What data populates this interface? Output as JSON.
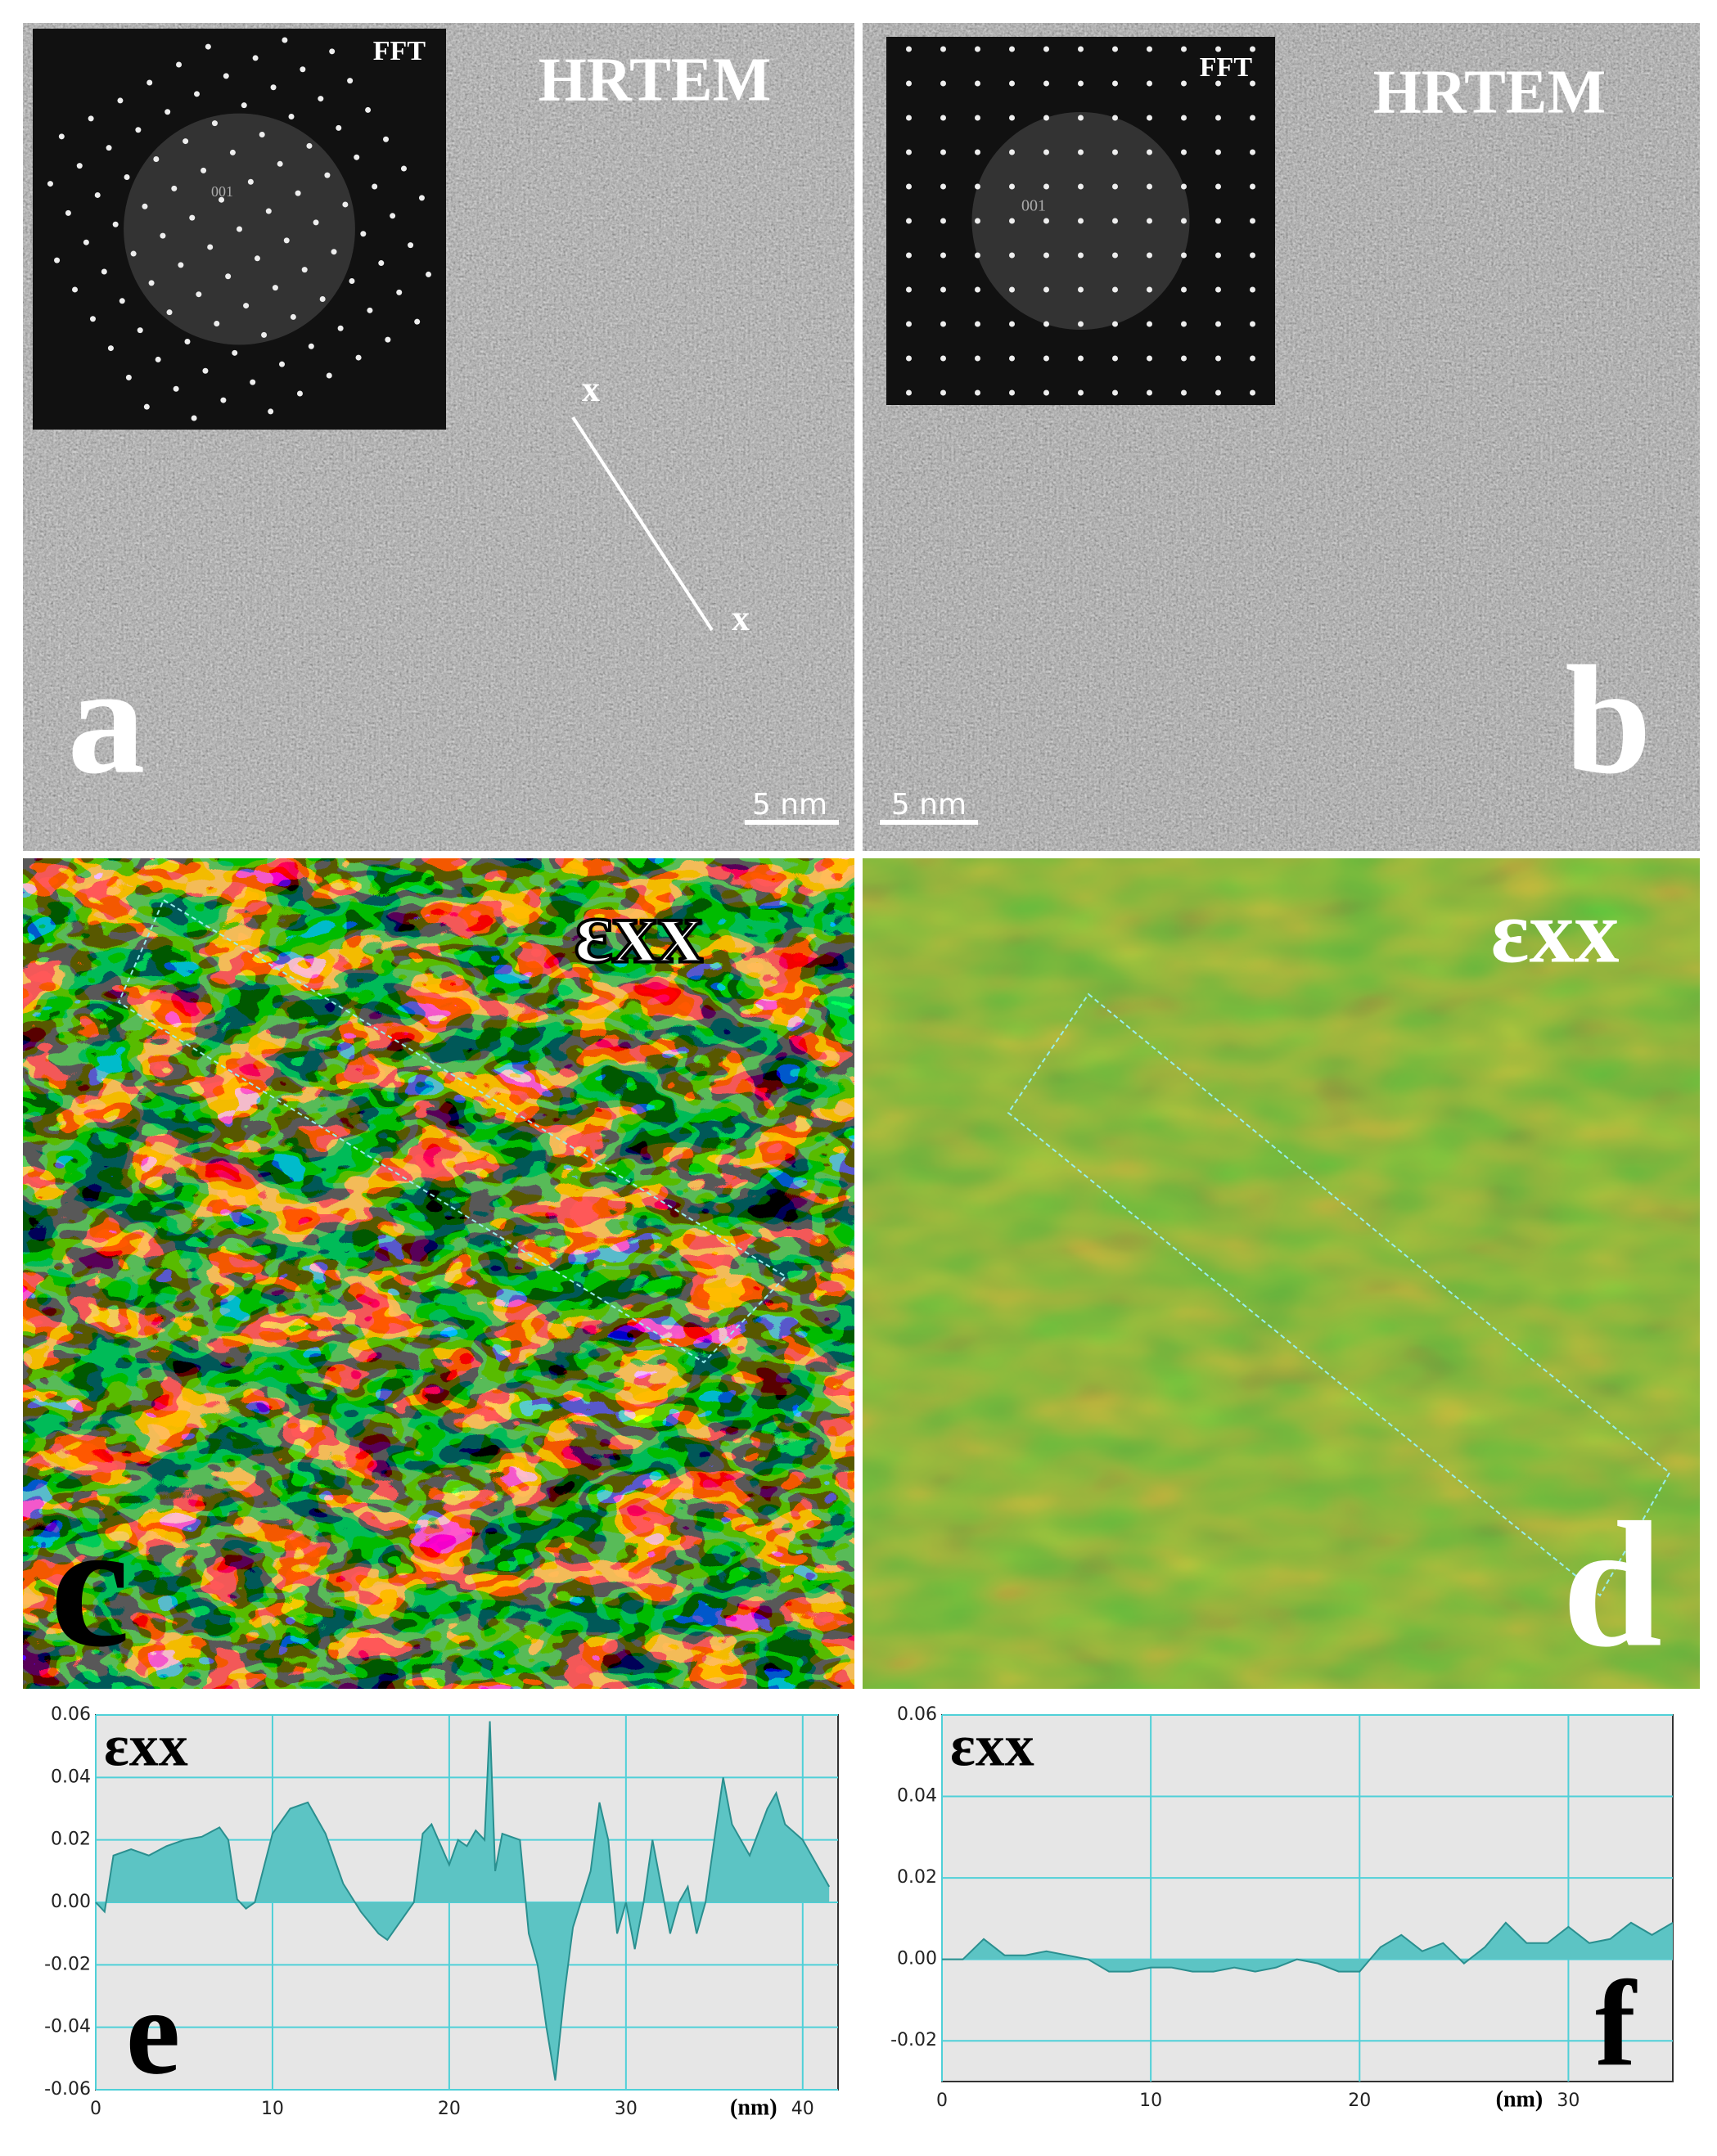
{
  "panels": [
    {
      "letter": "a",
      "title": "HRTEM",
      "inset": "FFT",
      "spot": "001",
      "line_start": "x",
      "line_end": "x",
      "scale_bar": "5 nm"
    },
    {
      "letter": "b",
      "title": "HRTEM",
      "inset": "FFT",
      "spot": "001",
      "scale_bar": "5 nm"
    },
    {
      "letter": "c",
      "title": "εxx"
    },
    {
      "letter": "d",
      "title": "εxx"
    }
  ],
  "chart_data": [
    {
      "type": "area",
      "label": "εxx",
      "panel_letter": "e",
      "x_label": "(nm)",
      "color": "#5cc4c4",
      "grid": true,
      "x": [
        0,
        0.5,
        1,
        2,
        3,
        4,
        5,
        6,
        7,
        7.5,
        8,
        8.5,
        9,
        10,
        11,
        12,
        13,
        14,
        15,
        16,
        16.5,
        17,
        18,
        18.5,
        19,
        20,
        20.5,
        21,
        21.5,
        22,
        22.3,
        22.6,
        23,
        24,
        24.5,
        25,
        25.5,
        26,
        26.5,
        27,
        28,
        28.5,
        29,
        29.5,
        30,
        30.5,
        31,
        31.5,
        32,
        32.5,
        33,
        33.5,
        34,
        34.5,
        35,
        35.5,
        36,
        37,
        38,
        38.5,
        39,
        40,
        41,
        41.5
      ],
      "values": [
        0,
        -0.003,
        0.015,
        0.017,
        0.015,
        0.018,
        0.02,
        0.021,
        0.024,
        0.02,
        0.001,
        -0.002,
        0,
        0.022,
        0.03,
        0.032,
        0.022,
        0.006,
        -0.003,
        -0.01,
        -0.012,
        -0.008,
        0,
        0.022,
        0.025,
        0.012,
        0.02,
        0.018,
        0.023,
        0.02,
        0.058,
        0.01,
        0.022,
        0.02,
        -0.01,
        -0.02,
        -0.04,
        -0.057,
        -0.03,
        -0.008,
        0.01,
        0.032,
        0.02,
        -0.01,
        0,
        -0.015,
        0,
        0.02,
        0.005,
        -0.01,
        0,
        0.005,
        -0.01,
        0,
        0.02,
        0.04,
        0.025,
        0.015,
        0.03,
        0.035,
        0.025,
        0.02,
        0.01,
        0.005
      ],
      "xlim": [
        0,
        42
      ],
      "ylim": [
        -0.06,
        0.06
      ],
      "xticks": [
        0,
        10,
        20,
        30,
        40
      ],
      "yticks": [
        0.06,
        0.04,
        0.02,
        {
          "value": 0,
          "label": "0.00"
        },
        -0.02,
        -0.04,
        -0.06
      ]
    },
    {
      "type": "area",
      "label": "εxx",
      "panel_letter": "f",
      "x_label": "(nm)",
      "color": "#5cc4c4",
      "grid": true,
      "x": [
        0,
        1,
        2,
        3,
        4,
        5,
        6,
        7,
        8,
        9,
        10,
        11,
        12,
        13,
        14,
        15,
        16,
        17,
        18,
        19,
        20,
        21,
        22,
        23,
        24,
        25,
        26,
        27,
        28,
        29,
        30,
        31,
        32,
        33,
        34,
        35
      ],
      "values": [
        0,
        0,
        0.005,
        0.001,
        0.001,
        0.002,
        0.001,
        0,
        -0.003,
        -0.003,
        -0.002,
        -0.002,
        -0.003,
        -0.003,
        -0.002,
        -0.003,
        -0.002,
        0,
        -0.001,
        -0.003,
        -0.003,
        0.003,
        0.006,
        0.002,
        0.004,
        -0.001,
        0.003,
        0.009,
        0.004,
        0.004,
        0.008,
        0.004,
        0.005,
        0.009,
        0.006,
        0.009
      ],
      "xlim": [
        0,
        35
      ],
      "ylim": [
        -0.03,
        0.06
      ],
      "xticks": [
        0,
        10,
        20,
        30
      ],
      "yticks": [
        0.06,
        0.04,
        0.02,
        {
          "value": 0,
          "label": "0.00"
        },
        -0.02
      ]
    }
  ]
}
